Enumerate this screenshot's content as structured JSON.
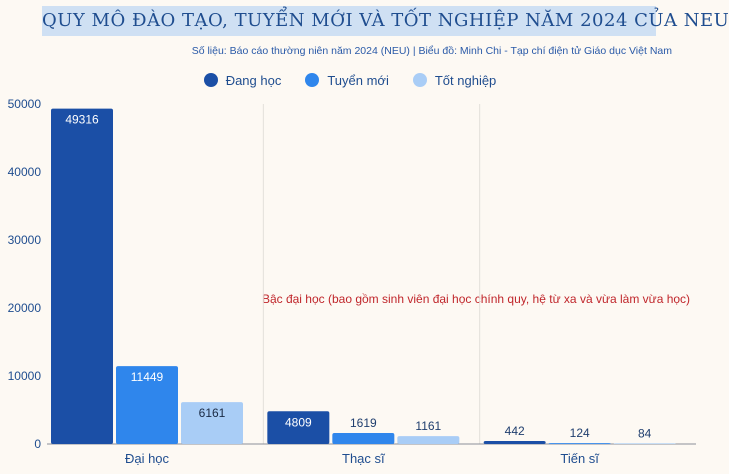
{
  "title": "QUY MÔ ĐÀO TẠO, TUYỂN MỚI VÀ TỐT NGHIỆP NĂM 2024 CỦA NEU",
  "subtitle": "Số liệu: Báo cáo thường niên năm 2024 (NEU)  |  Biểu đồ: Minh Chi - Tạp chí điện tử Giáo dục Việt Nam",
  "annotation": "Bậc đại học (bao gồm sinh viên đại học chính quy,  hệ từ xa và vừa làm vừa học)",
  "colors": {
    "dang_hoc": "#1b4fa6",
    "tuyen_moi": "#2f86ec",
    "tot_nghiep": "#a9cdf6",
    "annotation": "#c0262b",
    "axis_text": "#1f4d8f"
  },
  "chart_data": {
    "type": "bar",
    "categories": [
      "Đại học",
      "Thạc sĩ",
      "Tiến sĩ"
    ],
    "series": [
      {
        "name": "Đang học",
        "values": [
          49316,
          4809,
          442
        ]
      },
      {
        "name": "Tuyển mới",
        "values": [
          11449,
          1619,
          124
        ]
      },
      {
        "name": "Tốt nghiệp",
        "values": [
          6161,
          1161,
          84
        ]
      }
    ],
    "ylim": [
      0,
      50000
    ],
    "yticks": [
      0,
      10000,
      20000,
      30000,
      40000,
      50000
    ],
    "grid": "vertical separators between categories",
    "legend": "top-center",
    "data_labels": true
  }
}
